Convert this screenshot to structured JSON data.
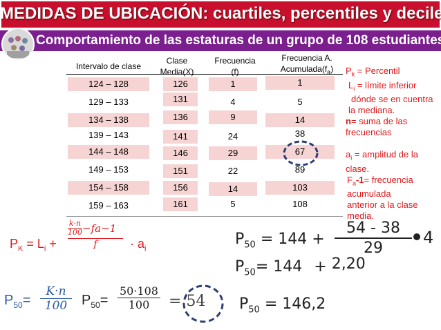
{
  "title": "MEDIDAS DE UBICACIÓN: cuartiles, percentiles y deciles",
  "subtitle": "Comportamiento de las estaturas de un grupo de 108 estudiantes",
  "table": {
    "headers": {
      "interval": "Intervalo de clase",
      "mid_1": "Clase",
      "mid_2": "Media(X)",
      "freq_1": "Frecuencia",
      "freq_2": "(f)",
      "cum_1": "Frecuencia A.",
      "cum_2": "Acumulada(f",
      "cum_sub": "a",
      "cum_3": ")"
    },
    "rows": [
      {
        "interval": "124 – 128",
        "mid": "126",
        "f": "1",
        "fa": "1"
      },
      {
        "interval": "129 – 133",
        "mid": "131",
        "f": "4",
        "fa": "5"
      },
      {
        "interval": "134 – 138",
        "mid": "136",
        "f": "9",
        "fa": "14"
      },
      {
        "interval": "139 – 143",
        "mid": "141",
        "f": "24",
        "fa": "38"
      },
      {
        "interval": "144 – 148",
        "mid": "146",
        "f": "29",
        "fa": "67"
      },
      {
        "interval": "149 – 153",
        "mid": "151",
        "f": "22",
        "fa": "89"
      },
      {
        "interval": "154 – 158",
        "mid": "156",
        "f": "14",
        "fa": "103"
      },
      {
        "interval": "159 – 163",
        "mid": "161",
        "f": "5",
        "fa": "108"
      }
    ]
  },
  "notes": {
    "pk_1": "P",
    "pk_sub": "k",
    "pk_2": " = Percentil",
    "li_1": "L",
    "li_sub": "i",
    "li_2": " = límite inferior",
    "li_3": "dónde se en cuentra",
    "li_4": "la mediana.",
    "n_1": "n",
    "n_2": "= suma de las",
    "n_3": "frecuencias",
    "ai_1": "a",
    "ai_sub": "i",
    "ai_2": " = amplitud de la",
    "ai_3": "clase.",
    "fa_1": "F",
    "fa_sub": "a",
    "fa_2": "-1",
    "fa_3": "= frecuencia",
    "fa_4": "acumulada",
    "fa_5": "anterior a la clase",
    "fa_6": "media."
  },
  "formulas": {
    "general": {
      "lhs": "P",
      "lhs_sub": "K",
      "eq": " = L",
      "eq_sub": "i",
      "plus": " +",
      "num_frac_top": "k·n",
      "num_frac_bot": "100",
      "num_rest": "−fa−1",
      "den": "f",
      "times": "· a",
      "times_sub": "i"
    },
    "p50_def": {
      "lhs": "P",
      "lhs_sub": "50",
      "eq": "=",
      "top": "K·n",
      "bot": "100"
    },
    "p50_calc": {
      "lhs": "P",
      "lhs_sub": "50",
      "eq": "=",
      "top": "50·108",
      "bot": "100",
      "result": "= 54"
    },
    "step1": {
      "lhs": "P",
      "lhs_sub": "50",
      "eq": "=",
      "base": "144 +",
      "num": "54 - 38",
      "den": "29",
      "mult": "4"
    },
    "step2": {
      "lhs": "P",
      "lhs_sub": "50",
      "eq": "=",
      "base": "144",
      "plus": "+",
      "val": "2,20"
    },
    "step3": {
      "lhs": "P",
      "lhs_sub": "50",
      "eq": "=",
      "val": "146,2"
    }
  }
}
